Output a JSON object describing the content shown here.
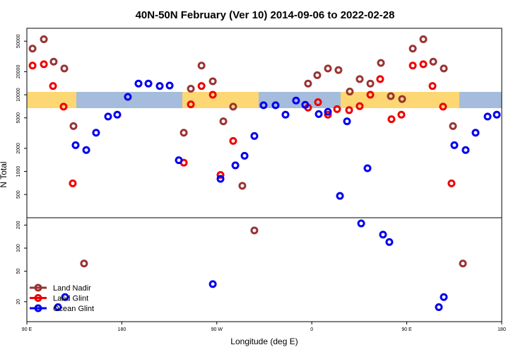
{
  "chart_data": {
    "type": "scatter",
    "title": "40N-50N February (Ver 10)   2014-09-06 to 2022-02-28",
    "x_label": "Longitude (deg E)",
    "y_label": "N Total",
    "xlim": [
      90,
      540
    ],
    "xticks": [
      {
        "value": 90,
        "label": "90 E"
      },
      {
        "value": 180,
        "label": "180"
      },
      {
        "value": 270,
        "label": "90 W"
      },
      {
        "value": 360,
        "label": "0"
      },
      {
        "value": 450,
        "label": "90 E"
      },
      {
        "value": 540,
        "label": "180"
      }
    ],
    "ylim": [
      11,
      73600
    ],
    "log_y": true,
    "yticks": [
      20,
      50,
      100,
      200,
      500,
      1000,
      2000,
      5000,
      10000,
      20000,
      50000
    ],
    "legend": "bottomleft",
    "series": [
      {
        "name": "Land Nadir",
        "color": "#993333",
        "x": [
          95.4,
          106.1,
          115.4,
          125.5,
          134.2,
          144.2,
          238.7,
          245.4,
          255.5,
          266.2,
          276.2,
          285.5,
          294.2,
          305.6,
          356.5,
          365.2,
          375.3,
          385.3,
          396.0,
          405.4,
          415.5,
          425.5,
          434.9,
          445.6,
          455.7,
          465.7,
          475.1,
          485.1,
          493.8,
          503.2
        ],
        "values": [
          40000,
          53000,
          27000,
          22000,
          3900,
          63,
          3200,
          12000,
          24000,
          15000,
          4500,
          7000,
          650,
          170,
          14000,
          18000,
          22000,
          21000,
          11000,
          16000,
          14000,
          26000,
          9600,
          8800,
          40000,
          53000,
          27000,
          22000,
          3900,
          63
        ]
      },
      {
        "name": "Land Glint",
        "color": "#ee0000",
        "x": [
          95.4,
          106.1,
          114.8,
          124.8,
          133.5,
          238.7,
          245.4,
          255.5,
          266.2,
          273.5,
          285.5,
          356.5,
          365.9,
          375.3,
          384.0,
          395.4,
          405.4,
          415.5,
          424.8,
          435.5,
          444.9,
          455.7,
          465.7,
          474.4,
          484.4,
          492.4
        ],
        "values": [
          24000,
          25000,
          13000,
          7000,
          700,
          1300,
          7500,
          13000,
          10000,
          900,
          2500,
          6800,
          8000,
          5500,
          6500,
          6300,
          7100,
          10000,
          16000,
          4800,
          5500,
          24000,
          25000,
          13000,
          7000,
          700
        ]
      },
      {
        "name": "Ocean Glint",
        "color": "#0000ee",
        "x": [
          119.5,
          126.2,
          136.2,
          146.3,
          155.6,
          167.0,
          175.7,
          185.7,
          195.8,
          205.2,
          215.9,
          225.3,
          234.0,
          266.2,
          273.5,
          287.6,
          296.3,
          305.6,
          314.3,
          325.7,
          335.1,
          345.1,
          353.8,
          366.6,
          375.3,
          386.7,
          393.4,
          406.8,
          412.8,
          427.5,
          433.5,
          480.4,
          485.1,
          495.1,
          505.8,
          515.2,
          526.6,
          535.3
        ],
        "values": [
          17,
          23,
          2200,
          1900,
          3200,
          5200,
          5500,
          9400,
          14000,
          14000,
          13000,
          13200,
          1400,
          34,
          800,
          1200,
          1600,
          2900,
          7300,
          7300,
          5500,
          8400,
          7400,
          5600,
          6000,
          480,
          4500,
          210,
          1100,
          150,
          120,
          17,
          23,
          2200,
          1900,
          3200,
          5200,
          5500
        ]
      }
    ]
  }
}
